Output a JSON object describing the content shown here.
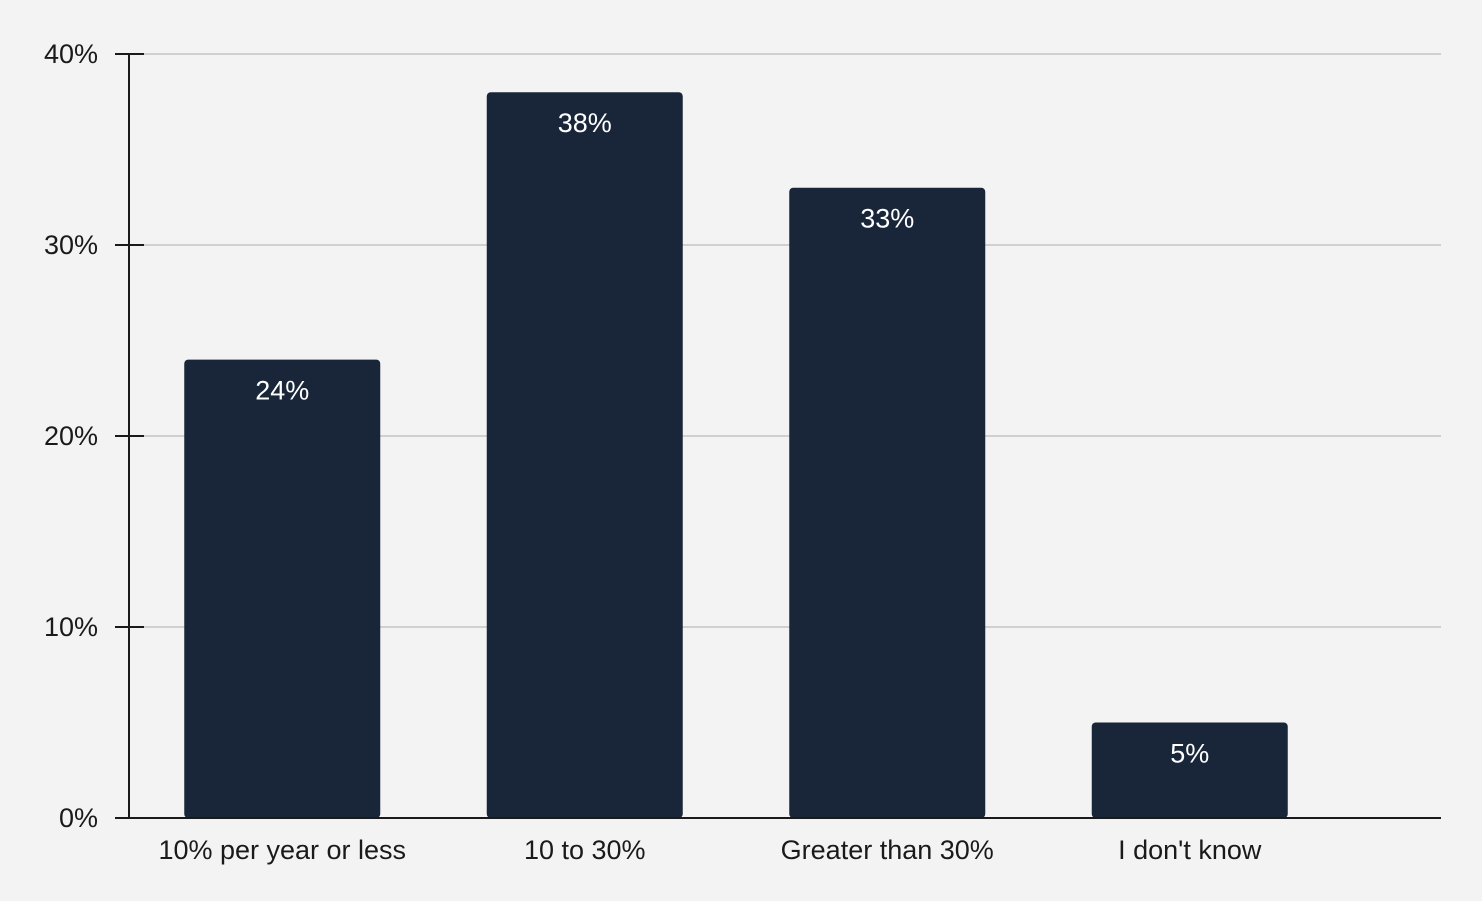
{
  "chart_data": {
    "type": "bar",
    "title": "",
    "xlabel": "",
    "ylabel": "",
    "categories": [
      "10% per year or less",
      "10 to 30%",
      "Greater than 30%",
      "I don't know"
    ],
    "values": [
      24,
      38,
      33,
      5
    ],
    "value_labels": [
      "24%",
      "38%",
      "33%",
      "5%"
    ],
    "ylim": [
      0,
      40
    ],
    "yticks": [
      0,
      10,
      20,
      30,
      40
    ],
    "ytick_labels": [
      "0%",
      "10%",
      "20%",
      "30%",
      "40%"
    ],
    "grid": true,
    "legend": "none",
    "colors": {
      "bar": "#19263a",
      "background": "#f3f3f3",
      "grid": "#d0d0d0",
      "axis": "#1a1a1a",
      "bar_label": "#ffffff",
      "text": "#1a1a1a"
    }
  }
}
